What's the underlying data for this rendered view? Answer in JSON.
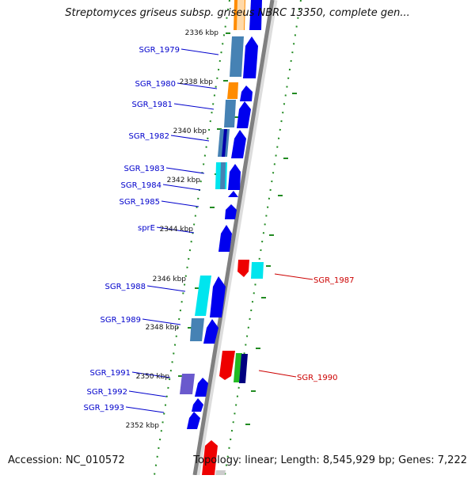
{
  "title": "Streptomyces griseus subsp. griseus NBRC 13350, complete gen...",
  "accession": "Accession: NC_010572",
  "topology": "Topology: linear; Length: 8,545,929 bp; Genes: 7,222",
  "colors": {
    "forward_gene": "#0000ee",
    "reverse_gene": "#ee0000",
    "steel_blue": "#4682b4",
    "cyan": "#00e5ee",
    "orange": "#ff8c00",
    "purple": "#6a5acd",
    "green": "#22bb22",
    "navy": "#000080",
    "track_dots": "#228b22",
    "axis": "#808080",
    "label_forward": "#0000cc",
    "label_reverse": "#cc0000"
  },
  "scale_labels": [
    {
      "id": "kbp-2336",
      "text": "2336 kbp"
    },
    {
      "id": "kbp-2338",
      "text": "2338 kbp"
    },
    {
      "id": "kbp-2340",
      "text": "2340 kbp"
    },
    {
      "id": "kbp-2342",
      "text": "2342 kbp"
    },
    {
      "id": "kbp-2344",
      "text": "2344 kbp"
    },
    {
      "id": "kbp-2346",
      "text": "2346 kbp"
    },
    {
      "id": "kbp-2348",
      "text": "2348 kbp"
    },
    {
      "id": "kbp-2350",
      "text": "2350 kbp"
    },
    {
      "id": "kbp-2352",
      "text": "2352 kbp"
    }
  ],
  "genes": [
    {
      "id": "sgr-1979",
      "label": "SGR_1979",
      "strand": "forward"
    },
    {
      "id": "sgr-1980",
      "label": "SGR_1980",
      "strand": "forward"
    },
    {
      "id": "sgr-1981",
      "label": "SGR_1981",
      "strand": "forward"
    },
    {
      "id": "sgr-1982",
      "label": "SGR_1982",
      "strand": "forward"
    },
    {
      "id": "sgr-1983",
      "label": "SGR_1983",
      "strand": "forward"
    },
    {
      "id": "sgr-1984",
      "label": "SGR_1984",
      "strand": "forward"
    },
    {
      "id": "sgr-1985",
      "label": "SGR_1985",
      "strand": "forward"
    },
    {
      "id": "sprE",
      "label": "sprE",
      "strand": "forward"
    },
    {
      "id": "sgr-1988",
      "label": "SGR_1988",
      "strand": "forward"
    },
    {
      "id": "sgr-1989",
      "label": "SGR_1989",
      "strand": "forward"
    },
    {
      "id": "sgr-1991",
      "label": "SGR_1991",
      "strand": "forward"
    },
    {
      "id": "sgr-1992",
      "label": "SGR_1992",
      "strand": "forward"
    },
    {
      "id": "sgr-1993",
      "label": "SGR_1993",
      "strand": "forward"
    },
    {
      "id": "sgr-1987",
      "label": "SGR_1987",
      "strand": "reverse"
    },
    {
      "id": "sgr-1990",
      "label": "SGR_1990",
      "strand": "reverse"
    }
  ]
}
